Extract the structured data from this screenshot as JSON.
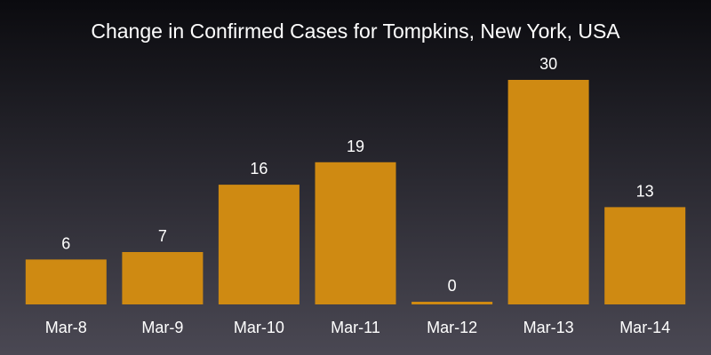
{
  "chart_data": {
    "type": "bar",
    "title": "Change in Confirmed Cases for Tompkins, New York, USA",
    "categories": [
      "Mar-8",
      "Mar-9",
      "Mar-10",
      "Mar-11",
      "Mar-12",
      "Mar-13",
      "Mar-14"
    ],
    "values": [
      6,
      7,
      16,
      19,
      0,
      30,
      13
    ],
    "xlabel": "",
    "ylabel": "",
    "ylim": [
      0,
      30
    ],
    "grid": false,
    "bar_color": "#cf8a12",
    "text_color": "#ffffff"
  }
}
